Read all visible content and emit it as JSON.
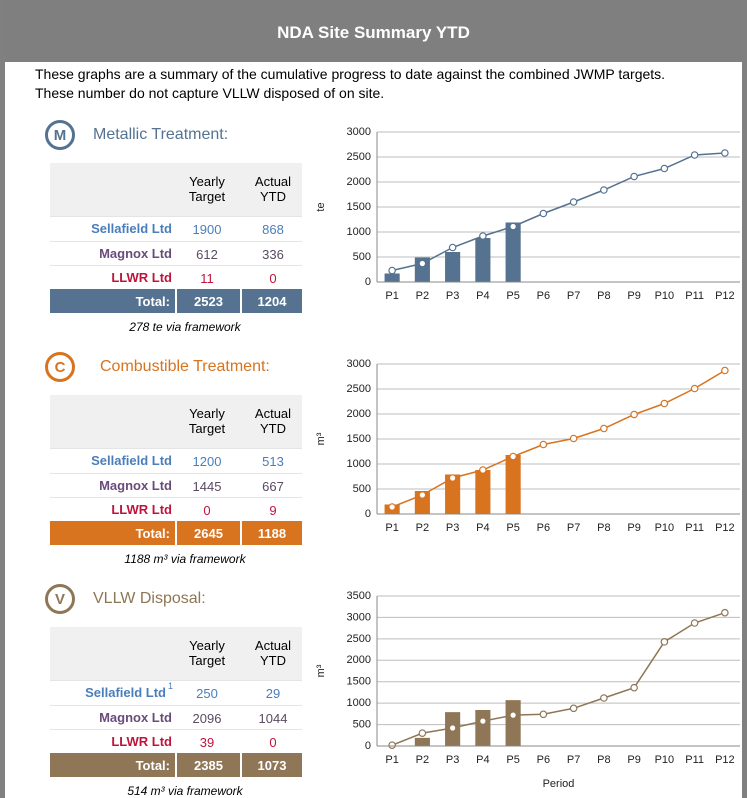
{
  "header": {
    "title": "NDA Site Summary YTD"
  },
  "intro": [
    "These graphs are a summary of the cumulative progress to date against the combined JWMP targets.",
    "These number do not capture VLLW disposed of on site."
  ],
  "sections": [
    {
      "icon": "M",
      "title": "Metallic Treatment:",
      "color": "#557290",
      "table": {
        "columns": [
          "Yearly Target",
          "Actual YTD"
        ],
        "rows": [
          {
            "label": "Sellafield Ltd",
            "target": 1900,
            "actual": 868
          },
          {
            "label": "Magnox Ltd",
            "target": 612,
            "actual": 336
          },
          {
            "label": "LLWR Ltd",
            "target": 11,
            "actual": 0
          }
        ],
        "total": {
          "label": "Total:",
          "target": 2523,
          "actual": 1204
        }
      },
      "footnote": "278  te via framework"
    },
    {
      "icon": "C",
      "title": "Combustible Treatment:",
      "color": "#d8731f",
      "table": {
        "columns": [
          "Yearly Target",
          "Actual YTD"
        ],
        "rows": [
          {
            "label": "Sellafield Ltd",
            "target": 1200,
            "actual": 513
          },
          {
            "label": "Magnox Ltd",
            "target": 1445,
            "actual": 667
          },
          {
            "label": "LLWR Ltd",
            "target": 0,
            "actual": 9
          }
        ],
        "total": {
          "label": "Total:",
          "target": 2645,
          "actual": 1188
        }
      },
      "footnote": "1188  m³ via framework"
    },
    {
      "icon": "V",
      "title": "VLLW Disposal:",
      "color": "#8e7656",
      "table": {
        "columns": [
          "Yearly Target",
          "Actual YTD"
        ],
        "rows": [
          {
            "label": "Sellafield Ltd",
            "note": "1",
            "target": 250,
            "actual": 29
          },
          {
            "label": "Magnox Ltd",
            "target": 2096,
            "actual": 1044
          },
          {
            "label": "LLWR Ltd",
            "target": 39,
            "actual": 0
          }
        ],
        "total": {
          "label": "Total:",
          "target": 2385,
          "actual": 1073
        }
      },
      "footnote": "514  m³ via framework"
    }
  ],
  "chart_data": [
    {
      "type": "combo",
      "ylabel": "te",
      "categories": [
        "P1",
        "P2",
        "P3",
        "P4",
        "P5",
        "P6",
        "P7",
        "P8",
        "P9",
        "P10",
        "P11",
        "P12"
      ],
      "ylim": [
        0,
        3000
      ],
      "yticks": [
        0,
        500,
        1000,
        1500,
        2000,
        2500,
        3000
      ],
      "grid": true,
      "series": [
        {
          "type": "bar",
          "color": "#557290",
          "values": [
            170,
            490,
            600,
            880,
            1190,
            null,
            null,
            null,
            null,
            null,
            null,
            null
          ]
        },
        {
          "type": "line",
          "color": "#557290",
          "values": [
            230,
            370,
            690,
            920,
            1110,
            1370,
            1600,
            1840,
            2110,
            2270,
            2540,
            2580
          ]
        }
      ]
    },
    {
      "type": "combo",
      "ylabel": "m³",
      "categories": [
        "P1",
        "P2",
        "P3",
        "P4",
        "P5",
        "P6",
        "P7",
        "P8",
        "P9",
        "P10",
        "P11",
        "P12"
      ],
      "ylim": [
        0,
        3000
      ],
      "yticks": [
        0,
        500,
        1000,
        1500,
        2000,
        2500,
        3000
      ],
      "grid": true,
      "series": [
        {
          "type": "bar",
          "color": "#d8731f",
          "values": [
            190,
            460,
            790,
            880,
            1180,
            null,
            null,
            null,
            null,
            null,
            null,
            null
          ]
        },
        {
          "type": "line",
          "color": "#d8731f",
          "values": [
            140,
            380,
            720,
            880,
            1150,
            1390,
            1510,
            1710,
            1990,
            2210,
            2510,
            2870
          ]
        }
      ]
    },
    {
      "type": "combo",
      "ylabel": "m³",
      "xlabel": "Period",
      "categories": [
        "P1",
        "P2",
        "P3",
        "P4",
        "P5",
        "P6",
        "P7",
        "P8",
        "P9",
        "P10",
        "P11",
        "P12"
      ],
      "ylim": [
        0,
        3500
      ],
      "yticks": [
        0,
        500,
        1000,
        1500,
        2000,
        2500,
        3000,
        3500
      ],
      "grid": true,
      "series": [
        {
          "type": "bar",
          "color": "#8e7656",
          "values": [
            null,
            190,
            790,
            840,
            1070,
            null,
            null,
            null,
            null,
            null,
            null,
            null
          ]
        },
        {
          "type": "line",
          "color": "#8e7656",
          "values": [
            20,
            300,
            420,
            580,
            720,
            740,
            880,
            1120,
            1360,
            2430,
            2870,
            3110
          ]
        }
      ]
    }
  ]
}
